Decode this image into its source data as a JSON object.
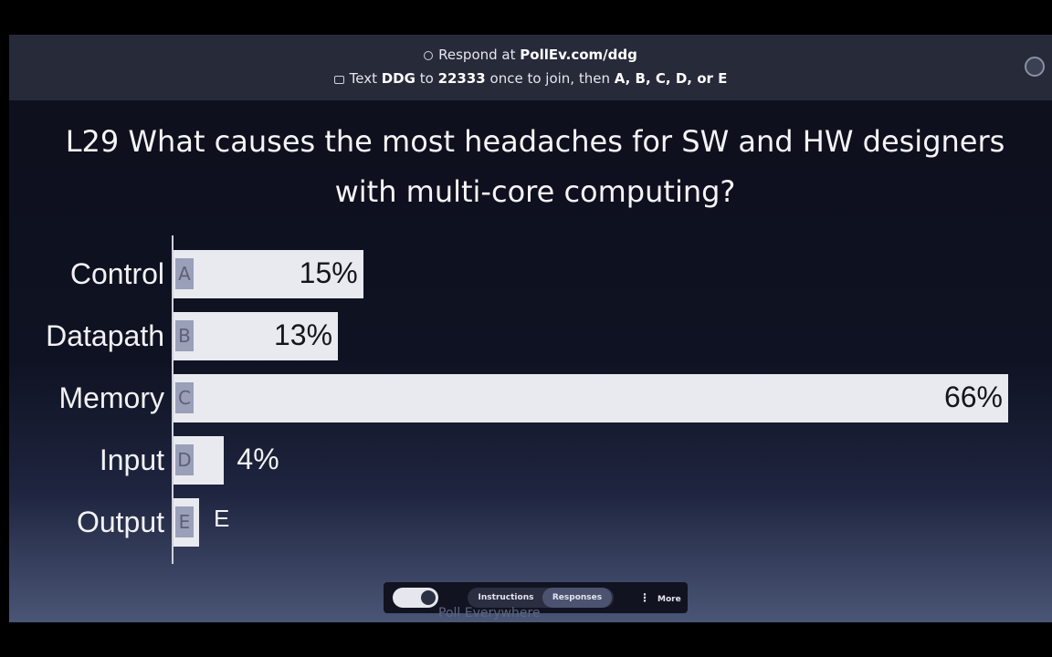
{
  "header": {
    "respond_prefix": "Respond at ",
    "respond_url": "PollEv.com/ddg",
    "text_prefix": "Text ",
    "text_keyword": "DDG",
    "text_middle": " to ",
    "text_number": "22333",
    "text_suffix": " once to join, then ",
    "text_options": "A, B, C, D, or E"
  },
  "question": "L29 What causes the most headaches for SW and HW designers with multi-core computing?",
  "chart_data": {
    "type": "bar",
    "orientation": "horizontal",
    "title": "L29 What causes the most headaches for SW and HW designers with multi-core computing?",
    "categories": [
      "Control",
      "Datapath",
      "Memory",
      "Input",
      "Output"
    ],
    "letters": [
      "A",
      "B",
      "C",
      "D",
      "E"
    ],
    "values": [
      15,
      13,
      66,
      4,
      2
    ],
    "value_labels": [
      "15%",
      "13%",
      "66%",
      "4%",
      ""
    ],
    "xlim": [
      0,
      66
    ],
    "grid": false,
    "colors": {
      "bar": "#e9eaf0",
      "letter_badge": "#9aa0b8"
    }
  },
  "controls": {
    "instructions_label": "Instructions",
    "responses_label": "Responses",
    "more_label": "More"
  },
  "footer": {
    "brand": "Poll Everywhere"
  },
  "icons": {
    "respond": "globe-icon",
    "text": "sms-icon",
    "presenter": "presenter-icon",
    "more": "vertical-dots-icon"
  }
}
